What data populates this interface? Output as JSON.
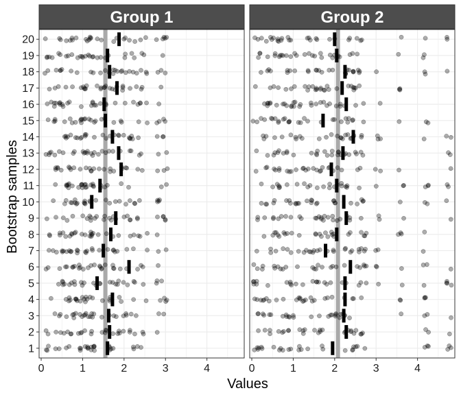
{
  "chart_data": {
    "type": "strip",
    "xlabel": "Values",
    "ylabel": "Bootstrap samples",
    "xlim": [
      -0.05,
      4.9
    ],
    "x_ticks": [
      0,
      1,
      2,
      3,
      4
    ],
    "x_tick_labels": [
      "0",
      "1",
      "2",
      "3",
      "4"
    ],
    "y_categories": [
      "1",
      "2",
      "3",
      "4",
      "5",
      "6",
      "7",
      "8",
      "9",
      "10",
      "11",
      "12",
      "13",
      "14",
      "15",
      "16",
      "17",
      "18",
      "19",
      "20"
    ],
    "grid": true,
    "colors": {
      "strip_bg": "#4d4d4d",
      "strip_text": "#ffffff",
      "point": "#000000",
      "mean_bar": "#000000",
      "overall_line": "#a9a9a9",
      "grid": "#ebebeb",
      "panel_border": "#333333"
    },
    "panels": [
      {
        "name": "Group 1",
        "overall_mean": 1.55,
        "original_values": [
          0.15,
          0.3,
          0.4,
          0.5,
          0.55,
          0.65,
          0.7,
          0.8,
          0.9,
          1.0,
          1.0,
          1.05,
          1.15,
          1.2,
          1.25,
          1.3,
          1.4,
          1.5,
          1.6,
          1.7,
          1.8,
          1.9,
          2.0,
          2.1,
          2.2,
          2.35,
          2.5,
          2.85,
          3.0
        ],
        "sample_means": [
          1.6,
          1.65,
          1.63,
          1.72,
          1.35,
          2.12,
          1.5,
          1.68,
          1.8,
          1.22,
          1.42,
          1.93,
          1.87,
          1.72,
          1.55,
          1.52,
          1.83,
          1.65,
          1.6,
          1.88
        ]
      },
      {
        "name": "Group 2",
        "overall_mean": 2.08,
        "original_values": [
          0.1,
          0.2,
          0.3,
          0.4,
          0.5,
          0.6,
          0.7,
          0.8,
          0.9,
          1.0,
          1.1,
          1.2,
          1.3,
          1.4,
          1.5,
          1.6,
          1.7,
          1.8,
          1.9,
          2.0,
          2.1,
          2.2,
          2.3,
          2.4,
          2.5,
          2.6,
          2.7,
          3.05,
          3.6,
          4.2,
          4.75
        ],
        "sample_means": [
          1.95,
          2.28,
          2.22,
          2.25,
          2.25,
          2.38,
          1.78,
          2.05,
          2.28,
          2.22,
          2.05,
          1.92,
          2.2,
          2.45,
          1.72,
          2.28,
          2.18,
          2.25,
          2.05,
          2.0
        ]
      }
    ]
  }
}
